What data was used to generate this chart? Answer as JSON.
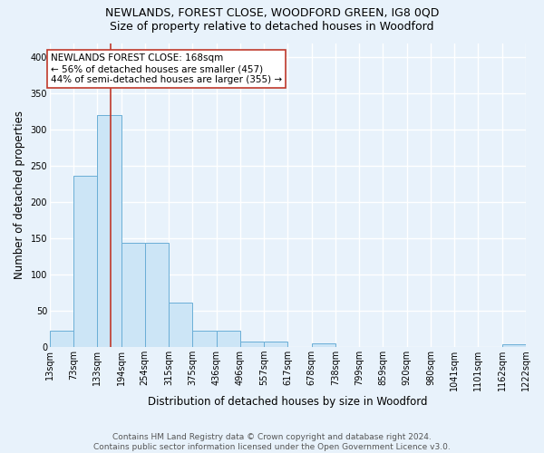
{
  "title": "NEWLANDS, FOREST CLOSE, WOODFORD GREEN, IG8 0QD",
  "subtitle": "Size of property relative to detached houses in Woodford",
  "xlabel": "Distribution of detached houses by size in Woodford",
  "ylabel": "Number of detached properties",
  "bin_edges": [
    13,
    73,
    133,
    194,
    254,
    315,
    375,
    436,
    496,
    557,
    617,
    678,
    738,
    799,
    859,
    920,
    980,
    1041,
    1101,
    1162,
    1222
  ],
  "bar_heights": [
    22,
    237,
    320,
    144,
    144,
    62,
    22,
    22,
    7,
    7,
    0,
    5,
    0,
    0,
    0,
    0,
    0,
    0,
    0,
    4
  ],
  "bar_color": "#cce5f6",
  "bar_edge_color": "#6aaed6",
  "background_color": "#e8f2fb",
  "grid_color": "#ffffff",
  "vline_x": 168,
  "vline_color": "#c0392b",
  "annotation_text": "NEWLANDS FOREST CLOSE: 168sqm\n← 56% of detached houses are smaller (457)\n44% of semi-detached houses are larger (355) →",
  "annotation_box_color": "#ffffff",
  "annotation_box_edge": "#c0392b",
  "ylim": [
    0,
    420
  ],
  "yticks": [
    0,
    50,
    100,
    150,
    200,
    250,
    300,
    350,
    400
  ],
  "tick_labels": [
    "13sqm",
    "73sqm",
    "133sqm",
    "194sqm",
    "254sqm",
    "315sqm",
    "375sqm",
    "436sqm",
    "496sqm",
    "557sqm",
    "617sqm",
    "678sqm",
    "738sqm",
    "799sqm",
    "859sqm",
    "920sqm",
    "980sqm",
    "1041sqm",
    "1101sqm",
    "1162sqm",
    "1222sqm"
  ],
  "footnote": "Contains HM Land Registry data © Crown copyright and database right 2024.\nContains public sector information licensed under the Open Government Licence v3.0.",
  "title_fontsize": 9,
  "subtitle_fontsize": 9,
  "xlabel_fontsize": 8.5,
  "ylabel_fontsize": 8.5,
  "tick_fontsize": 7,
  "annotation_fontsize": 7.5,
  "footnote_fontsize": 6.5
}
